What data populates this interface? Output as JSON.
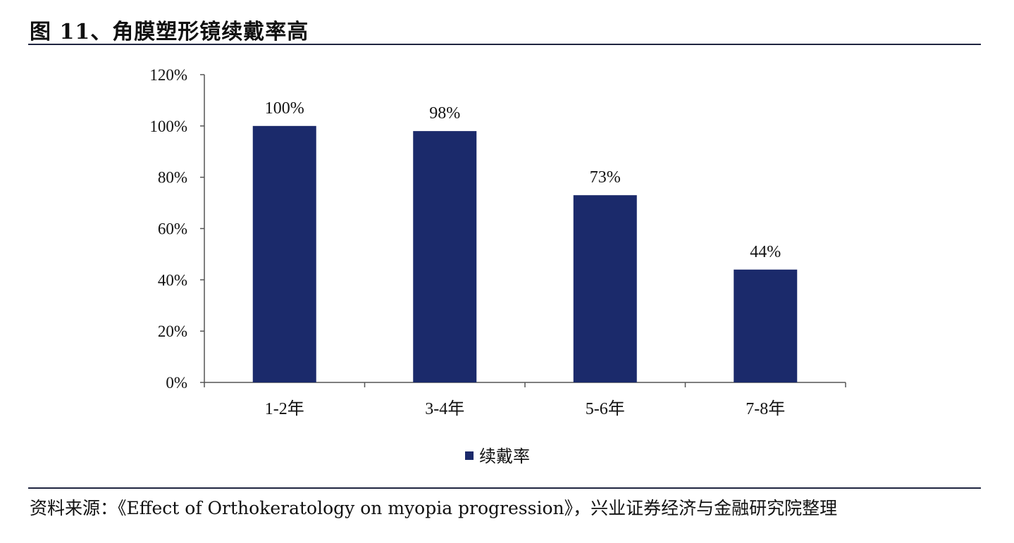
{
  "header": {
    "title": "图 11、角膜塑形镜续戴率高"
  },
  "footer": {
    "source": "资料来源：《Effect of Orthokeratology on myopia progression》，兴业证券经济与金融研究院整理"
  },
  "colors": {
    "bar": "#1b2a6b",
    "axis": "#555555"
  },
  "chart_data": {
    "type": "bar",
    "title": "图 11、角膜塑形镜续戴率高",
    "categories": [
      "1-2年",
      "3-4年",
      "5-6年",
      "7-8年"
    ],
    "series": [
      {
        "name": "续戴率",
        "values": [
          100,
          98,
          73,
          44
        ]
      }
    ],
    "data_labels": [
      "100%",
      "98%",
      "73%",
      "44%"
    ],
    "ylim": [
      0,
      120
    ],
    "yticks": [
      "0%",
      "20%",
      "40%",
      "60%",
      "80%",
      "100%",
      "120%"
    ],
    "grid": false,
    "legend": "bottom"
  }
}
